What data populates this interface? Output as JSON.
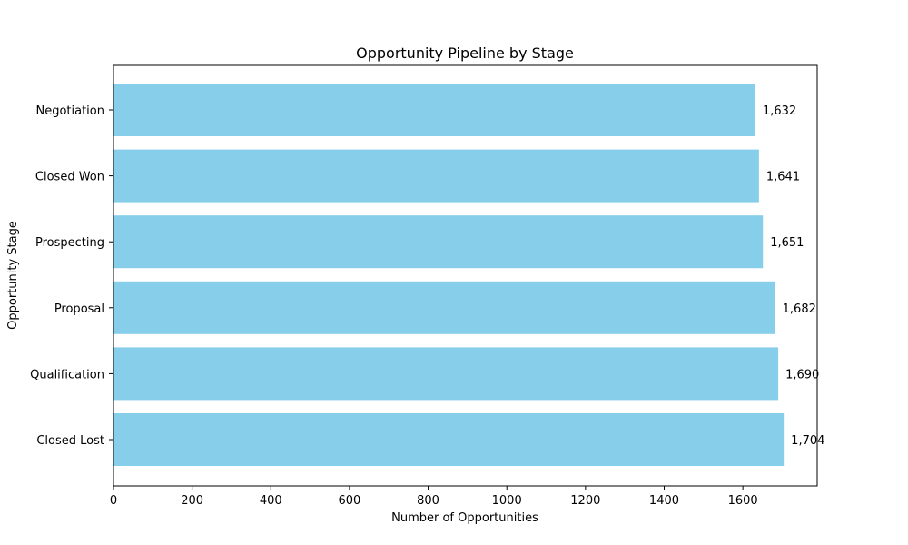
{
  "chart_data": {
    "type": "bar",
    "orientation": "horizontal",
    "title": "Opportunity Pipeline by Stage",
    "xlabel": "Number of Opportunities",
    "ylabel": "Opportunity Stage",
    "categories": [
      "Closed Lost",
      "Qualification",
      "Proposal",
      "Prospecting",
      "Closed Won",
      "Negotiation"
    ],
    "values": [
      1704,
      1690,
      1682,
      1651,
      1641,
      1632
    ],
    "data_labels": [
      "1,704",
      "1,690",
      "1,682",
      "1,651",
      "1,641",
      "1,632"
    ],
    "xlim": [
      0,
      1789
    ],
    "xticks": [
      0,
      200,
      400,
      600,
      800,
      1000,
      1200,
      1400,
      1600
    ],
    "xtick_labels": [
      "0",
      "200",
      "400",
      "600",
      "800",
      "1000",
      "1200",
      "1400",
      "1600"
    ],
    "bar_color": "#87CEEB",
    "grid": false,
    "legend": "none"
  }
}
